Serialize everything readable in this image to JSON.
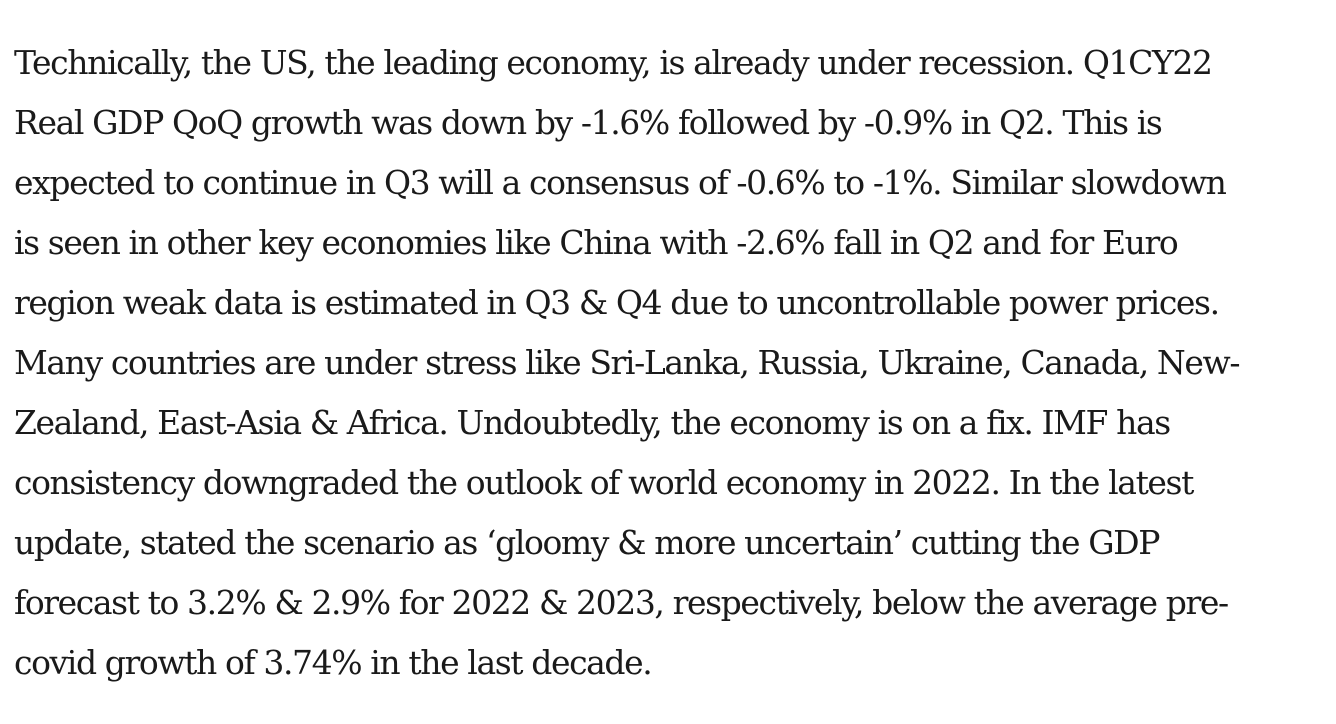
{
  "article": {
    "paragraph_lines": [
      "Technically, the US, the leading economy, is already under recession. Q1CY22",
      "Real GDP QoQ growth was down by -1.6% followed by -0.9% in Q2. This is",
      "expected to continue in Q3 will a consensus of -0.6% to -1%. Similar slowdown",
      "is seen in other key economies like China with -2.6% fall in Q2 and for Euro",
      "region weak data is estimated in Q3 & Q4 due to uncontrollable power prices.",
      "Many countries are under stress like Sri-Lanka, Russia, Ukraine, Canada, New-",
      "Zealand, East-Asia & Africa. Undoubtedly, the economy is on a fix. IMF has",
      "consistency downgraded the outlook of world economy in 2022. In the latest",
      "update, stated the scenario as ‘gloomy & more uncertain’ cutting the GDP",
      "forecast to 3.2% & 2.9% for 2022 & 2023, respectively, below the average pre-",
      "covid growth of 3.74% in the last decade."
    ]
  },
  "colors": {
    "text": "#1a1a1a",
    "background": "#ffffff"
  }
}
